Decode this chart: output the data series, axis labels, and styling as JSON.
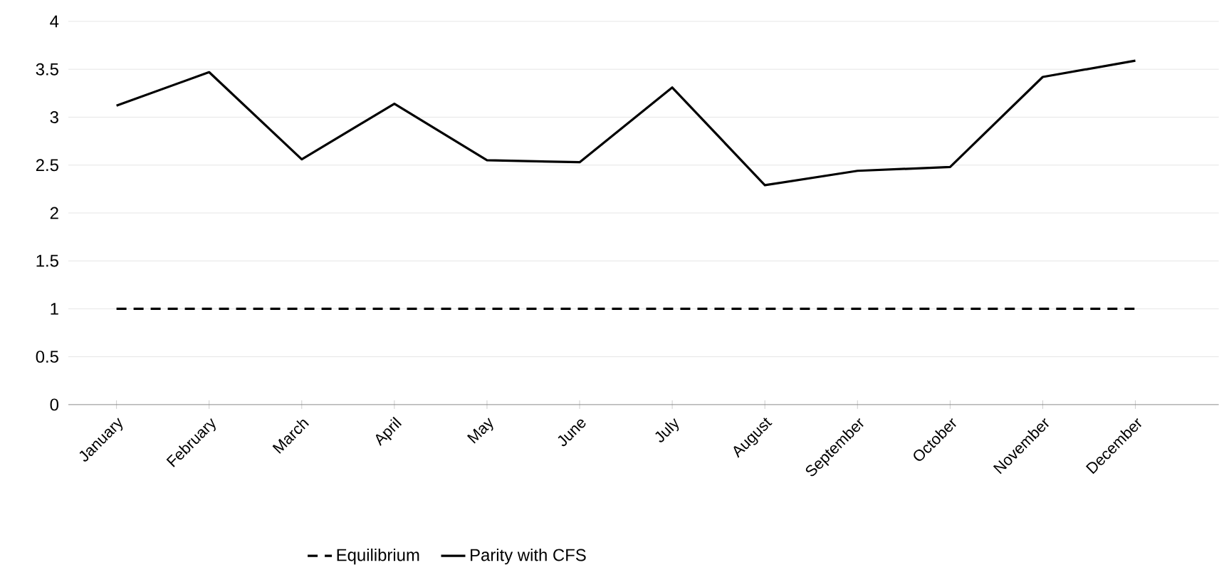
{
  "chart_data": {
    "type": "line",
    "categories": [
      "January",
      "February",
      "March",
      "April",
      "May",
      "June",
      "July",
      "August",
      "September",
      "October",
      "November",
      "December"
    ],
    "series": [
      {
        "name": "Equilibrium",
        "color": "#000000",
        "line_style": "dashed",
        "values": [
          1,
          1,
          1,
          1,
          1,
          1,
          1,
          1,
          1,
          1,
          1,
          1
        ]
      },
      {
        "name": "Parity with CFS",
        "color": "#000000",
        "line_style": "solid",
        "values": [
          3.12,
          3.47,
          2.56,
          3.14,
          2.55,
          2.53,
          3.31,
          2.29,
          2.44,
          2.48,
          3.42,
          3.59
        ]
      }
    ],
    "ylim": [
      0,
      4
    ],
    "yticks": [
      0,
      0.5,
      1,
      1.5,
      2,
      2.5,
      3,
      3.5,
      4
    ],
    "grid": "y",
    "legend": "bottom"
  }
}
